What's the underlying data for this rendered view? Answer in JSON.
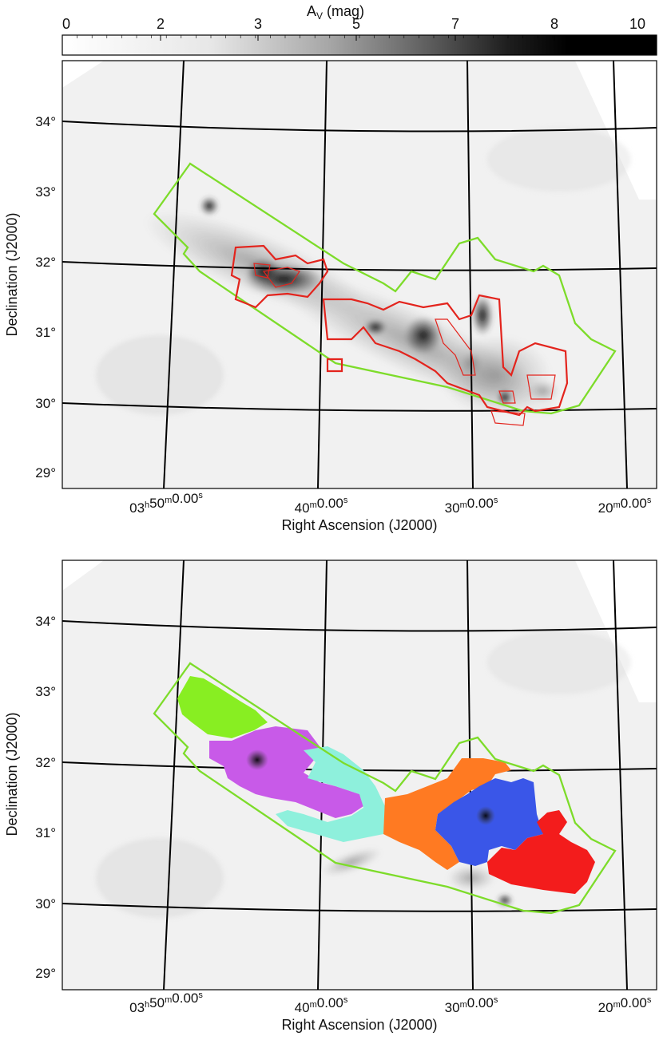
{
  "colorbar": {
    "title_main": "A",
    "title_sub": "V",
    "title_unit": " (mag)",
    "tick_labels": [
      "0",
      "2",
      "3",
      "5",
      "7",
      "8",
      "10"
    ]
  },
  "chart_data": [
    {
      "type": "heatmap",
      "panel": "top",
      "xlabel": "Right Ascension (J2000)",
      "ylabel": "Declination (J2000)",
      "x_ticks": [
        "03h50m00.00s",
        "40m00.00s",
        "30m00.00s",
        "20m00.00s"
      ],
      "x_tick_labels": [
        {
          "main": "03",
          "h": "h",
          "m_val": "50",
          "m": "m",
          "s_val": "0.00",
          "s": "s"
        },
        {
          "main": "",
          "h": "",
          "m_val": "40",
          "m": "m",
          "s_val": "0.00",
          "s": "s"
        },
        {
          "main": "",
          "h": "",
          "m_val": "30",
          "m": "m",
          "s_val": "0.00",
          "s": "s"
        },
        {
          "main": "",
          "h": "",
          "m_val": "20",
          "m": "m",
          "s_val": "0.00",
          "s": "s"
        }
      ],
      "y_ticks": [
        "34°",
        "33°",
        "32°",
        "31°",
        "30°",
        "29°"
      ],
      "colorscale": "grayscale",
      "clim": [
        0,
        10
      ],
      "overlays": [
        "green survey outline",
        "red contour regions"
      ],
      "colors": {
        "outline": "#7ddc2a",
        "contours": "#e3241d"
      }
    },
    {
      "type": "heatmap",
      "panel": "bottom",
      "xlabel": "Right Ascension (J2000)",
      "ylabel": "Declination (J2000)",
      "x_ticks": [
        "03h50m00.00s",
        "40m00.00s",
        "30m00.00s",
        "20m00.00s"
      ],
      "x_tick_labels": [
        {
          "main": "03",
          "h": "h",
          "m_val": "50",
          "m": "m",
          "s_val": "0.00",
          "s": "s"
        },
        {
          "main": "",
          "h": "",
          "m_val": "40",
          "m": "m",
          "s_val": "0.00",
          "s": "s"
        },
        {
          "main": "",
          "h": "",
          "m_val": "30",
          "m": "m",
          "s_val": "0.00",
          "s": "s"
        },
        {
          "main": "",
          "h": "",
          "m_val": "20",
          "m": "m",
          "s_val": "0.00",
          "s": "s"
        }
      ],
      "y_ticks": [
        "34°",
        "33°",
        "32°",
        "31°",
        "30°",
        "29°"
      ],
      "colorscale": "grayscale",
      "clim": [
        0,
        10
      ],
      "overlays": [
        "green survey outline",
        "colored region masks"
      ],
      "colors": {
        "outline": "#7ddc2a",
        "regions": [
          "#88ee22",
          "#c85ae8",
          "#8ef0dc",
          "#ff7a22",
          "#3a56e8",
          "#f31c1c"
        ]
      }
    }
  ]
}
